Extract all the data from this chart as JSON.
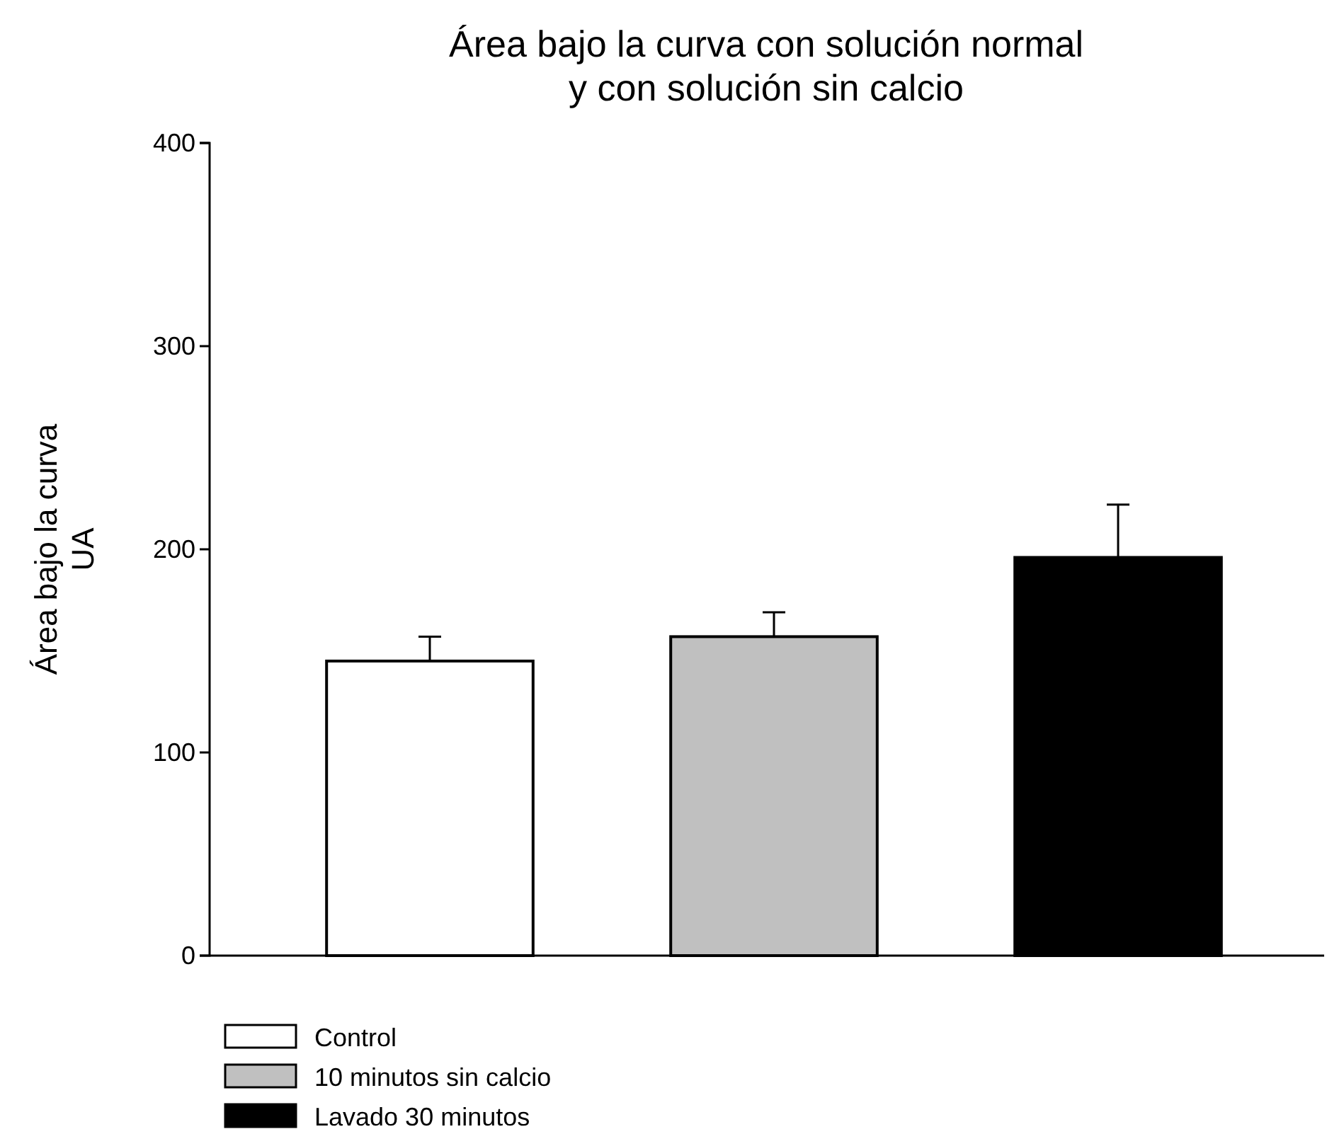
{
  "chart_data": {
    "type": "bar",
    "title": "Área bajo la curva con solución normal\ny con solución sin calcio",
    "ylabel": "Área bajo la curva\nUA",
    "categories": [
      null,
      null,
      null
    ],
    "series": [
      {
        "name": "Control",
        "color": "#ffffff",
        "values": [
          145,
          null,
          null
        ],
        "errors": [
          12,
          null,
          null
        ]
      },
      {
        "name": "10 minutos sin calcio",
        "color": "#c0c0c0",
        "values": [
          null,
          157,
          null
        ],
        "errors": [
          null,
          12,
          null
        ]
      },
      {
        "name": "Lavado 30 minutos",
        "color": "#000000",
        "values": [
          null,
          null,
          196
        ],
        "errors": [
          null,
          null,
          26
        ]
      }
    ],
    "ylim": [
      0,
      400
    ],
    "yticks": [
      0,
      100,
      200,
      300,
      400
    ],
    "grid": false,
    "legend": "bottom left"
  }
}
